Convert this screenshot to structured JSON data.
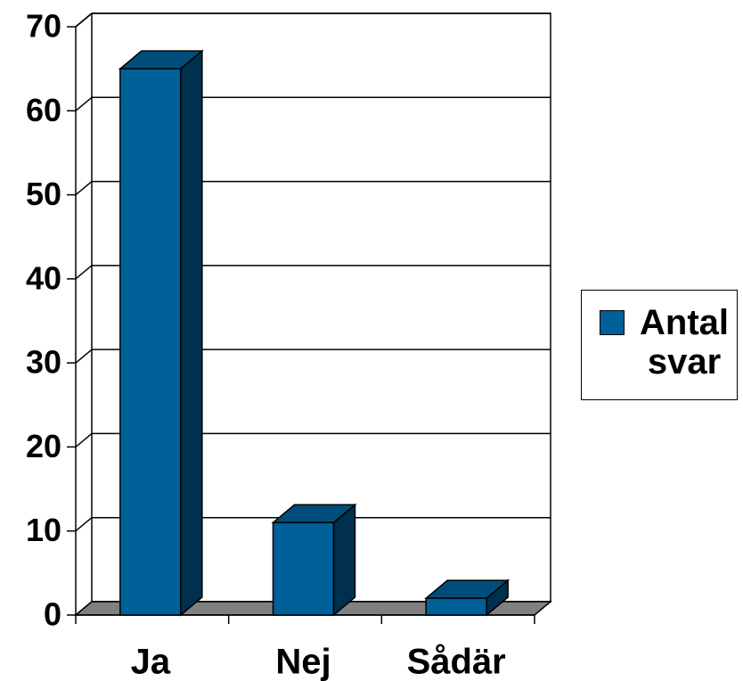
{
  "chart_data": {
    "type": "bar3d",
    "categories": [
      "Ja",
      "Nej",
      "Sådär"
    ],
    "series": [
      {
        "name": "Antal svar",
        "color": "#00609a",
        "values": [
          65,
          11,
          2
        ]
      }
    ],
    "ylim": [
      0,
      70
    ],
    "yticks": [
      0,
      10,
      20,
      30,
      40,
      50,
      60,
      70
    ],
    "grid": true,
    "legend": "right"
  }
}
